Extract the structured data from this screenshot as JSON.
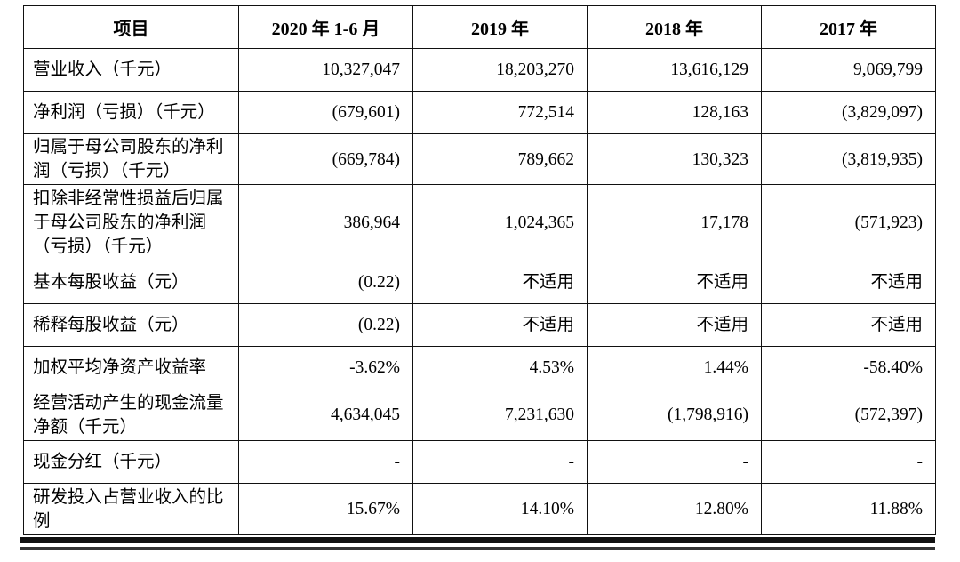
{
  "table": {
    "headers": [
      "项目",
      "2020 年 1-6 月",
      "2019 年",
      "2018 年",
      "2017 年"
    ],
    "rows": [
      {
        "label": "营业收入（千元）",
        "values": [
          "10,327,047",
          "18,203,270",
          "13,616,129",
          "9,069,799"
        ]
      },
      {
        "label": "净利润（亏损）（千元）",
        "values": [
          "(679,601)",
          "772,514",
          "128,163",
          "(3,829,097)"
        ]
      },
      {
        "label": "归属于母公司股东的净利润（亏损）（千元）",
        "values": [
          "(669,784)",
          "789,662",
          "130,323",
          "(3,819,935)"
        ]
      },
      {
        "label": "扣除非经常性损益后归属于母公司股东的净利润（亏损）（千元）",
        "values": [
          "386,964",
          "1,024,365",
          "17,178",
          "(571,923)"
        ]
      },
      {
        "label": "基本每股收益（元）",
        "values": [
          "(0.22)",
          "不适用",
          "不适用",
          "不适用"
        ]
      },
      {
        "label": "稀释每股收益（元）",
        "values": [
          "(0.22)",
          "不适用",
          "不适用",
          "不适用"
        ]
      },
      {
        "label": "加权平均净资产收益率",
        "values": [
          "-3.62%",
          "4.53%",
          "1.44%",
          "-58.40%"
        ]
      },
      {
        "label": "经营活动产生的现金流量净额（千元）",
        "values": [
          "4,634,045",
          "7,231,630",
          "(1,798,916)",
          "(572,397)"
        ]
      },
      {
        "label": "现金分红（千元）",
        "values": [
          "-",
          "-",
          "-",
          "-"
        ]
      },
      {
        "label": "研发投入占营业收入的比例",
        "values": [
          "15.67%",
          "14.10%",
          "12.80%",
          "11.88%"
        ]
      }
    ]
  }
}
